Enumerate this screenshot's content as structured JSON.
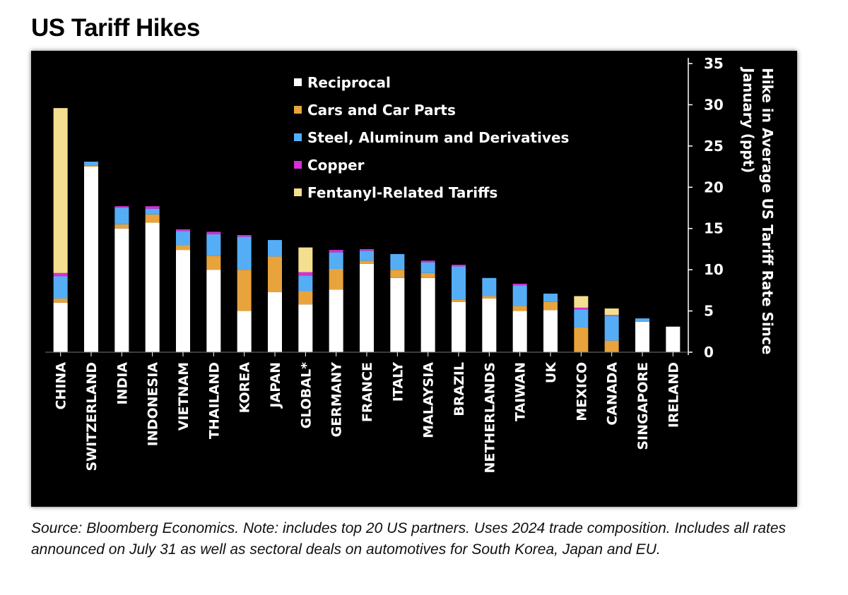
{
  "title": "US Tariff Hikes",
  "source_note": "Source: Bloomberg Economics. Note: includes top 20 US partners. Uses 2024 trade composition. Includes all rates announced on July 31 as well as sectoral deals on automotives for South Korea, Japan and EU.",
  "colors": {
    "background": "#000000",
    "reciprocal": "#ffffff",
    "cars": "#e8a33d",
    "steel": "#55aef5",
    "copper": "#d62fd6",
    "fentanyl": "#f3df8f"
  },
  "chart_data": {
    "type": "bar",
    "stacked": true,
    "title": "US Tariff Hikes",
    "xlabel": "",
    "ylabel": "Hike in Average US Tariff Rate Since January (ppt)",
    "ylabel_lines": [
      "Hike in Average US Tariff Rate Since",
      "January (ppt)"
    ],
    "ylim": [
      0,
      35
    ],
    "yticks": [
      0,
      5,
      10,
      15,
      20,
      25,
      30,
      35
    ],
    "ytick_labels": [
      "0",
      "5",
      "10",
      "15",
      "20",
      "25",
      "30",
      "35"
    ],
    "y_axis_position": "right",
    "legend_position": "top-center",
    "grid": false,
    "categories": [
      "CHINA",
      "SWITZERLAND",
      "INDIA",
      "INDONESIA",
      "VIETNAM",
      "THAILAND",
      "KOREA",
      "JAPAN",
      "GLOBAL*",
      "GERMANY",
      "FRANCE",
      "ITALY",
      "MALAYSIA",
      "BRAZIL",
      "NETHERLANDS",
      "TAIWAN",
      "UK",
      "MEXICO",
      "CANADA",
      "SINGAPORE",
      "IRELAND"
    ],
    "series": [
      {
        "name": "Reciprocal",
        "color_key": "reciprocal",
        "values": [
          6.0,
          22.5,
          15.0,
          15.7,
          12.4,
          10.0,
          5.0,
          7.3,
          5.8,
          7.6,
          10.7,
          9.0,
          9.0,
          6.1,
          6.5,
          5.0,
          5.1,
          0,
          0,
          3.7,
          3.1
        ]
      },
      {
        "name": "Cars and Car Parts",
        "color_key": "cars",
        "values": [
          0.5,
          0.1,
          0.5,
          1.0,
          0.6,
          1.7,
          5.0,
          4.3,
          1.6,
          2.5,
          0.4,
          1.0,
          0.6,
          0.3,
          0.3,
          0.6,
          1.0,
          3.0,
          1.4,
          0,
          0
        ]
      },
      {
        "name": "Steel, Aluminum and Derivatives",
        "color_key": "steel",
        "values": [
          2.7,
          0.5,
          2.0,
          0.7,
          1.7,
          2.6,
          4.0,
          2.0,
          1.9,
          2.0,
          1.2,
          1.9,
          1.3,
          4.0,
          2.2,
          2.5,
          1.0,
          2.2,
          3.0,
          0.4,
          0
        ]
      },
      {
        "name": "Copper",
        "color_key": "copper",
        "values": [
          0.4,
          0,
          0.2,
          0.3,
          0.2,
          0.3,
          0.2,
          0,
          0.4,
          0.3,
          0.2,
          0,
          0.2,
          0.2,
          0,
          0.2,
          0,
          0.2,
          0.1,
          0,
          0
        ]
      },
      {
        "name": "Fentanyl-Related Tariffs",
        "color_key": "fentanyl",
        "values": [
          20.0,
          0,
          0,
          0,
          0,
          0,
          0,
          0,
          3.0,
          0,
          0,
          0,
          0,
          0,
          0,
          0,
          0,
          1.4,
          0.8,
          0,
          0
        ]
      }
    ]
  }
}
